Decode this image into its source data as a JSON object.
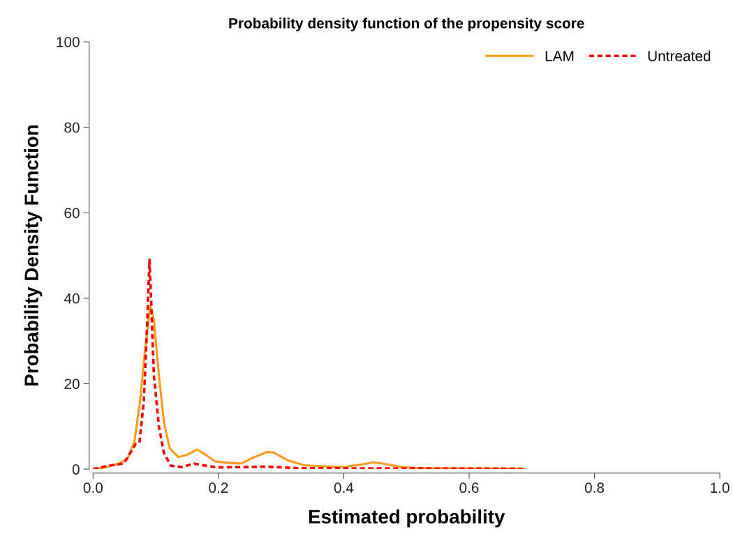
{
  "chart_data": {
    "type": "line",
    "title": "Probability density function of the propensity score",
    "xlabel": "Estimated probability",
    "ylabel": "Probability Density Function",
    "xlim": [
      0,
      1.0
    ],
    "xticks": [
      {
        "value": 0,
        "label": "0.0"
      },
      0.2,
      0.4,
      0.6,
      0.8,
      {
        "value": 1.0,
        "label": "1.0"
      }
    ],
    "ylim": [
      0,
      100
    ],
    "yticks": [
      0,
      20,
      40,
      60,
      80,
      100
    ],
    "grid": false,
    "legend": "top right",
    "series": [
      {
        "name": "LAM",
        "color": "#ff9a1a",
        "line_style": "solid",
        "x": [
          0,
          0.016,
          0.041,
          0.055,
          0.066,
          0.075,
          0.083,
          0.091,
          0.097,
          0.105,
          0.113,
          0.122,
          0.136,
          0.149,
          0.166,
          0.18,
          0.195,
          0.214,
          0.236,
          0.254,
          0.277,
          0.288,
          0.31,
          0.337,
          0.363,
          0.4,
          0.424,
          0.447,
          0.462,
          0.488,
          0.518,
          0.572,
          0.688
        ],
        "values": [
          0,
          0.3,
          1.3,
          2.5,
          6.5,
          16,
          28,
          38,
          35,
          22,
          11,
          5,
          2.8,
          3.3,
          4.6,
          3.3,
          1.8,
          1.5,
          1.3,
          2.6,
          4.0,
          3.9,
          2.1,
          0.9,
          0.7,
          0.5,
          1.0,
          1.6,
          1.3,
          0.6,
          0.2,
          0.2,
          0.1
        ]
      },
      {
        "name": "Untreated",
        "color": "#ff0000",
        "line_style": "dotted",
        "x": [
          0,
          0.024,
          0.049,
          0.068,
          0.074,
          0.081,
          0.086,
          0.09,
          0.093,
          0.097,
          0.105,
          0.113,
          0.124,
          0.142,
          0.161,
          0.18,
          0.2,
          0.277,
          0.33,
          0.685
        ],
        "values": [
          0,
          0.8,
          1.3,
          5.9,
          6.2,
          16,
          33,
          49,
          38,
          22,
          10,
          3.8,
          0.8,
          0.5,
          1.3,
          0.8,
          0.4,
          0.6,
          0.2,
          0.1
        ]
      }
    ]
  }
}
